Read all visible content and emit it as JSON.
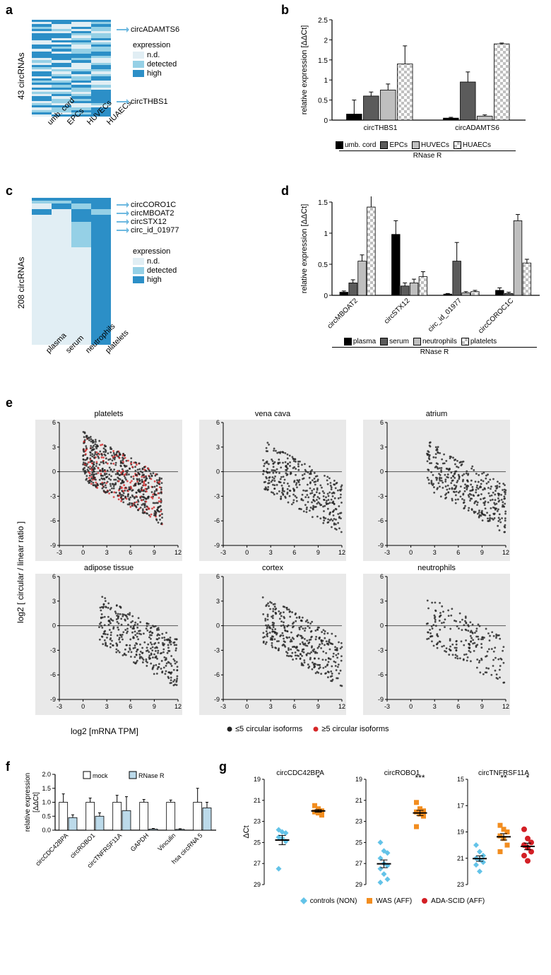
{
  "panels": {
    "a": "a",
    "b": "b",
    "c": "c",
    "d": "d",
    "e": "e",
    "f": "f",
    "g": "g"
  },
  "colors": {
    "heat_nd": "#e1eef4",
    "heat_detected": "#95d0e6",
    "heat_high": "#2c8fc7",
    "arrow": "#6eb9e0",
    "scatter_bg": "#e9e9e9",
    "scatter_black": "#222222",
    "scatter_red": "#d62728",
    "bar_black": "#000000",
    "bar_dgray": "#5b5b5b",
    "bar_lgray": "#bfbfbf",
    "bar_white": "#ffffff",
    "bar_checker1": "#bfbfbf",
    "bar_checker2": "#ffffff",
    "f_mock": "#ffffff",
    "f_rnaser": "#bcdaea",
    "g_controls": "#63c3e8",
    "g_was": "#f28d1f",
    "g_ada": "#d31f25"
  },
  "panel_a": {
    "ylabel": "43 circRNAs",
    "columns": [
      "umb. cord",
      "EPCs",
      "HUVECs",
      "HUAECs"
    ],
    "legend_title": "expression",
    "legend_items": [
      "n.d.",
      "detected",
      "high"
    ],
    "callout_top": "circADAMTS6",
    "callout_bot": "circTHBS1",
    "rows": 43,
    "pattern": [
      [
        2,
        2,
        2,
        2
      ],
      [
        0,
        2,
        0,
        1
      ],
      [
        2,
        0,
        0,
        2
      ],
      [
        1,
        0,
        2,
        1
      ],
      [
        2,
        1,
        0,
        1
      ],
      [
        0,
        0,
        2,
        0
      ],
      [
        2,
        2,
        1,
        1
      ],
      [
        2,
        2,
        0,
        1
      ],
      [
        2,
        0,
        1,
        2
      ],
      [
        0,
        2,
        2,
        0
      ],
      [
        0,
        0,
        1,
        1
      ],
      [
        2,
        2,
        0,
        2
      ],
      [
        2,
        1,
        0,
        1
      ],
      [
        0,
        2,
        1,
        1
      ],
      [
        2,
        0,
        1,
        2
      ],
      [
        2,
        2,
        2,
        2
      ],
      [
        2,
        2,
        2,
        1
      ],
      [
        0,
        2,
        1,
        0
      ],
      [
        1,
        0,
        2,
        0
      ],
      [
        0,
        2,
        0,
        1
      ],
      [
        2,
        2,
        0,
        2
      ],
      [
        1,
        0,
        0,
        2
      ],
      [
        0,
        1,
        1,
        1
      ],
      [
        2,
        0,
        2,
        0
      ],
      [
        2,
        1,
        0,
        1
      ],
      [
        0,
        2,
        1,
        2
      ],
      [
        2,
        0,
        1,
        2
      ],
      [
        1,
        1,
        2,
        0
      ],
      [
        2,
        2,
        0,
        0
      ],
      [
        0,
        1,
        2,
        1
      ],
      [
        2,
        2,
        1,
        0
      ],
      [
        0,
        0,
        1,
        2
      ],
      [
        1,
        1,
        0,
        2
      ],
      [
        0,
        2,
        1,
        2
      ],
      [
        2,
        0,
        2,
        2
      ],
      [
        2,
        1,
        1,
        2
      ],
      [
        0,
        1,
        2,
        2
      ],
      [
        1,
        0,
        0,
        1
      ],
      [
        2,
        2,
        0,
        0
      ],
      [
        0,
        1,
        1,
        2
      ],
      [
        1,
        1,
        2,
        2
      ],
      [
        2,
        0,
        1,
        2
      ],
      [
        0,
        2,
        2,
        2
      ]
    ]
  },
  "panel_b": {
    "ylabel": "relative expression [ΔΔCt]",
    "ylim": [
      0,
      2.5
    ],
    "ytick_step": 0.5,
    "groups": [
      "circTHBS1",
      "circADAMTS6"
    ],
    "series": [
      "umb. cord",
      "EPCs",
      "HUVECs",
      "HUAECs"
    ],
    "values": [
      [
        0.15,
        0.6,
        0.75,
        1.4
      ],
      [
        0.05,
        0.95,
        0.1,
        1.9
      ]
    ],
    "errors": [
      [
        0.35,
        0.1,
        0.15,
        0.45
      ],
      [
        0.02,
        0.25,
        0.03,
        0.02
      ]
    ],
    "bracket": "RNase R"
  },
  "panel_c": {
    "ylabel": "208 circRNAs",
    "columns": [
      "plasma",
      "serum",
      "neutrophils",
      "platelets"
    ],
    "legend_title": "expression",
    "legend_items": [
      "n.d.",
      "detected",
      "high"
    ],
    "callouts": [
      "circCORO1C",
      "circMBOAT2",
      "circSTX12",
      "circ_id_01977"
    ],
    "rows": 208
  },
  "panel_d": {
    "ylabel": "relative expression [ΔΔCt]",
    "ylim": [
      0,
      1.5
    ],
    "ytick_step": 0.5,
    "groups": [
      "circMBOAT2",
      "circSTX12",
      "circ_id_01977",
      "circCOROC1C"
    ],
    "series": [
      "plasma",
      "serum",
      "neutrophils",
      "platelets"
    ],
    "values": [
      [
        0.05,
        0.2,
        0.55,
        1.42
      ],
      [
        0.98,
        0.15,
        0.2,
        0.3
      ],
      [
        0.02,
        0.55,
        0.04,
        0.06
      ],
      [
        0.08,
        0.03,
        1.2,
        0.52
      ]
    ],
    "errors": [
      [
        0.02,
        0.05,
        0.1,
        0.2
      ],
      [
        0.22,
        0.05,
        0.06,
        0.08
      ],
      [
        0.01,
        0.3,
        0.02,
        0.02
      ],
      [
        0.04,
        0.02,
        0.1,
        0.06
      ]
    ],
    "bracket": "RNase R"
  },
  "panel_e": {
    "ylabel": "log2 [ circular / linear  ratio ]",
    "xlabel": "log2 [mRNA TPM]",
    "xlim": [
      -3,
      12
    ],
    "xtick_step": 3,
    "ylim": [
      -9,
      6
    ],
    "ytick_step": 3,
    "subplots": [
      "platelets",
      "vena cava",
      "atrium",
      "adipose  tissue",
      "cortex",
      "neutrophils"
    ],
    "legend": {
      "le5": "≤5 circular isoforms",
      "ge5": "≥5 circular isoforms"
    }
  },
  "panel_f": {
    "ylabel": "relative expression\n[ΔΔCt]",
    "ylim": [
      0,
      2.0
    ],
    "ytick_step": 0.5,
    "series": [
      "mock",
      "RNase R"
    ],
    "categories": [
      "circCDC42BPA",
      "circROBO1",
      "circTNFRSF11A",
      "GAPDH",
      "Vinculin",
      "hsa circRNA 5"
    ],
    "values": [
      [
        1.0,
        0.45
      ],
      [
        1.0,
        0.5
      ],
      [
        1.0,
        0.7
      ],
      [
        1.0,
        0.04
      ],
      [
        1.0,
        0.03
      ],
      [
        1.0,
        0.8
      ]
    ],
    "errors": [
      [
        0.3,
        0.1
      ],
      [
        0.15,
        0.12
      ],
      [
        0.25,
        0.5
      ],
      [
        0.1,
        0.02
      ],
      [
        0.08,
        0.02
      ],
      [
        0.5,
        0.2
      ]
    ]
  },
  "panel_g": {
    "ylabel": "ΔCt",
    "plots": [
      {
        "title": "circCDC42BPA",
        "ylim": [
          29,
          19
        ],
        "yticks": [
          29,
          27,
          25,
          23,
          21,
          19
        ],
        "groups": [
          {
            "label": "controls",
            "x": 0,
            "color": "g_controls",
            "shape": "diamond",
            "points": [
              23.8,
              24.0,
              24.1,
              24.5,
              24.6,
              24.9,
              27.5
            ],
            "sig": ""
          },
          {
            "label": "WAS",
            "x": 1,
            "color": "g_was",
            "shape": "square",
            "points": [
              21.5,
              21.8,
              22.0,
              22.1,
              22.2,
              22.4
            ],
            "sig": "*"
          }
        ]
      },
      {
        "title": "circROBO1",
        "ylim": [
          29,
          19
        ],
        "yticks": [
          29,
          27,
          25,
          23,
          21,
          19
        ],
        "groups": [
          {
            "label": "controls",
            "x": 0,
            "color": "g_controls",
            "shape": "diamond",
            "points": [
              25.0,
              25.8,
              26.0,
              26.5,
              27.0,
              27.2,
              27.5,
              28.0,
              28.5,
              28.8
            ],
            "sig": ""
          },
          {
            "label": "WAS",
            "x": 1,
            "color": "g_was",
            "shape": "square",
            "points": [
              21.2,
              21.8,
              22.0,
              22.1,
              22.3,
              22.5,
              23.5
            ],
            "sig": "***"
          }
        ]
      },
      {
        "title": "circTNFRSF11A",
        "ylim": [
          23,
          15
        ],
        "yticks": [
          23,
          21,
          19,
          17,
          15
        ],
        "groups": [
          {
            "label": "controls",
            "x": 0,
            "color": "g_controls",
            "shape": "diamond",
            "points": [
              20.0,
              20.5,
              20.8,
              21.0,
              21.1,
              21.3,
              21.5,
              22.0
            ],
            "sig": ""
          },
          {
            "label": "WAS",
            "x": 1,
            "color": "g_was",
            "shape": "square",
            "points": [
              18.5,
              18.8,
              19.0,
              19.3,
              19.5,
              20.0,
              20.5
            ],
            "sig": "**"
          },
          {
            "label": "ADA",
            "x": 2,
            "color": "g_ada",
            "shape": "circle",
            "points": [
              18.8,
              19.5,
              19.8,
              20.0,
              20.2,
              20.5,
              20.8,
              21.2
            ],
            "sig": "*"
          }
        ]
      }
    ],
    "legend": [
      {
        "label": "controls (NON)",
        "color": "g_controls",
        "shape": "diamond"
      },
      {
        "label": "WAS (AFF)",
        "color": "g_was",
        "shape": "square"
      },
      {
        "label": "ADA-SCID (AFF)",
        "color": "g_ada",
        "shape": "circle"
      }
    ]
  }
}
